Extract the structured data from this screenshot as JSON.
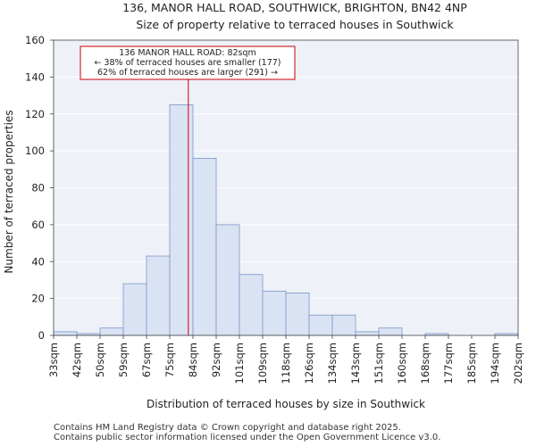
{
  "chart_data": {
    "type": "bar",
    "title_lines": [
      "136, MANOR HALL ROAD, SOUTHWICK, BRIGHTON, BN42 4NP",
      "Size of property relative to terraced houses in Southwick"
    ],
    "xlabel": "Distribution of terraced houses by size in Southwick",
    "ylabel": "Number of terraced properties",
    "ylim": [
      0,
      160
    ],
    "yticks": [
      0,
      20,
      40,
      60,
      80,
      100,
      120,
      140,
      160
    ],
    "bin_labels": [
      "33sqm",
      "42sqm",
      "50sqm",
      "59sqm",
      "67sqm",
      "75sqm",
      "84sqm",
      "92sqm",
      "101sqm",
      "109sqm",
      "118sqm",
      "126sqm",
      "134sqm",
      "143sqm",
      "151sqm",
      "160sqm",
      "168sqm",
      "177sqm",
      "185sqm",
      "194sqm",
      "202sqm"
    ],
    "values": [
      2,
      1,
      4,
      28,
      43,
      125,
      96,
      60,
      33,
      24,
      23,
      11,
      11,
      2,
      4,
      0,
      1,
      0,
      0,
      1
    ],
    "bar_color": "#dae3f3",
    "bar_edge_color": "#7a96c8",
    "property_marker": {
      "bin_position": 5.8,
      "color": "#cc0000"
    },
    "annotation": {
      "lines": [
        "136 MANOR HALL ROAD: 82sqm",
        "← 38% of terraced houses are smaller (177)",
        "62% of terraced houses are larger (291) →"
      ],
      "border_color": "#cc0000"
    }
  },
  "footer": {
    "line1": "Contains HM Land Registry data © Crown copyright and database right 2025.",
    "line2": "Contains public sector information licensed under the Open Government Licence v3.0."
  }
}
